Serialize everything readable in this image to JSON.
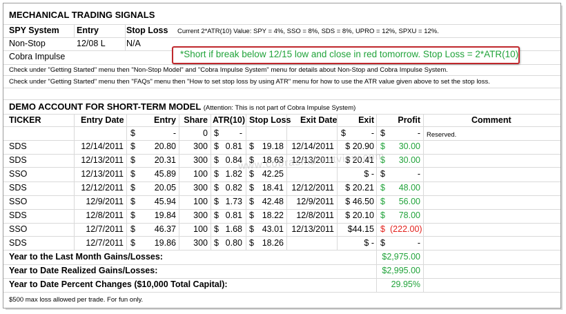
{
  "title": "MECHANICAL TRADING SIGNALS",
  "signals_header": {
    "system": "SPY System",
    "entry": "Entry",
    "stop_loss": "Stop Loss",
    "atr_note": "Current 2*ATR(10) Value: SPY = 4%, SSO = 8%, SDS = 8%, UPRO = 12%, SPXU = 12%."
  },
  "nonstop": {
    "label": "Non-Stop",
    "entry": "12/08 L",
    "stop": "N/A"
  },
  "cobra": {
    "label": "Cobra Impulse",
    "note": "*Short if break below 12/15 low and close in red tomorrow. Stop Loss = 2*ATR(10)"
  },
  "info1": "Check under \"Getting Started\" menu then \"Non-Stop Model\" and \"Cobra Impulse System\" menu  for details about Non-Stop and Cobra Impulse System.",
  "info2": "Check under \"Getting Started\" menu then \"FAQs\" menu then \"How to set stop loss by using ATR\" menu for how to use the ATR value given above to set the stop loss.",
  "demo": {
    "title": "DEMO ACCOUNT FOR SHORT-TERM MODEL",
    "note": "(Attention: This is not part of Cobra Impulse System)"
  },
  "columns": {
    "ticker": "TICKER",
    "entry_date": "Entry Date",
    "entry": "Entry",
    "share": "Share",
    "atr": "ATR(10)",
    "stop_loss": "Stop Loss",
    "exit_date": "Exit Date",
    "exit": "Exit",
    "profit": "Profit",
    "comment": "Comment"
  },
  "reserved_row": {
    "entry_dollar": "$",
    "entry_val": "-",
    "share": "0",
    "atr_dollar": "$",
    "atr_val": "-",
    "exit_dollar": "$",
    "exit_val": "-",
    "profit_dollar": "$",
    "profit_val": "-",
    "comment": "Reserved."
  },
  "trades": [
    {
      "ticker": "SDS",
      "entry_date": "12/14/2011",
      "entry": "20.80",
      "share": "300",
      "atr": "0.81",
      "stop": "19.18",
      "exit_date": "12/14/2011",
      "exit": "$ 20.90",
      "profit": "30.00",
      "profit_sign": "$",
      "color": "#21a33a"
    },
    {
      "ticker": "SDS",
      "entry_date": "12/13/2011",
      "entry": "20.31",
      "share": "300",
      "atr": "0.84",
      "stop": "18.63",
      "exit_date": "12/13/2011",
      "exit": "$ 20.41",
      "profit": "30.00",
      "profit_sign": "$",
      "color": "#21a33a"
    },
    {
      "ticker": "SSO",
      "entry_date": "12/13/2011",
      "entry": "45.89",
      "share": "100",
      "atr": "1.82",
      "stop": "42.25",
      "exit_date": "",
      "exit": "$    -",
      "profit": "-",
      "profit_sign": "$",
      "color": "#000000"
    },
    {
      "ticker": "SDS",
      "entry_date": "12/12/2011",
      "entry": "20.05",
      "share": "300",
      "atr": "0.82",
      "stop": "18.41",
      "exit_date": "12/12/2011",
      "exit": "$ 20.21",
      "profit": "48.00",
      "profit_sign": "$",
      "color": "#21a33a"
    },
    {
      "ticker": "SSO",
      "entry_date": "12/9/2011",
      "entry": "45.94",
      "share": "100",
      "atr": "1.73",
      "stop": "42.48",
      "exit_date": "12/9/2011",
      "exit": "$ 46.50",
      "profit": "56.00",
      "profit_sign": "$",
      "color": "#21a33a"
    },
    {
      "ticker": "SDS",
      "entry_date": "12/8/2011",
      "entry": "19.84",
      "share": "300",
      "atr": "0.81",
      "stop": "18.22",
      "exit_date": "12/8/2011",
      "exit": "$ 20.10",
      "profit": "78.00",
      "profit_sign": "$",
      "color": "#21a33a"
    },
    {
      "ticker": "SSO",
      "entry_date": "12/7/2011",
      "entry": "46.37",
      "share": "100",
      "atr": "1.68",
      "stop": "43.01",
      "exit_date": "12/13/2011",
      "exit": "$44.15",
      "profit": "(222.00)",
      "profit_sign": "$",
      "color": "#e3201b"
    },
    {
      "ticker": "SDS",
      "entry_date": "12/7/2011",
      "entry": "19.86",
      "share": "300",
      "atr": "0.80",
      "stop": "18.26",
      "exit_date": "",
      "exit": "$    -",
      "profit": "-",
      "profit_sign": "$",
      "color": "#000000"
    }
  ],
  "summary": {
    "last_month_label": "Year to the Last Month Gains/Losses:",
    "last_month_value": "$2,975.00",
    "ytd_label": "Year to Date Realized Gains/Losses:",
    "ytd_value": "$2,995.00",
    "pct_label": "Year to Date Percent Changes ($10,000 Total Capital):",
    "pct_value": "29.95%"
  },
  "footnote": "$500 max loss allowed per trade. For fun only.",
  "watermark": "www.cobrasmarketview.com",
  "colors": {
    "green": "#21a33a",
    "red": "#e3201b",
    "note_border": "#c0282d"
  }
}
